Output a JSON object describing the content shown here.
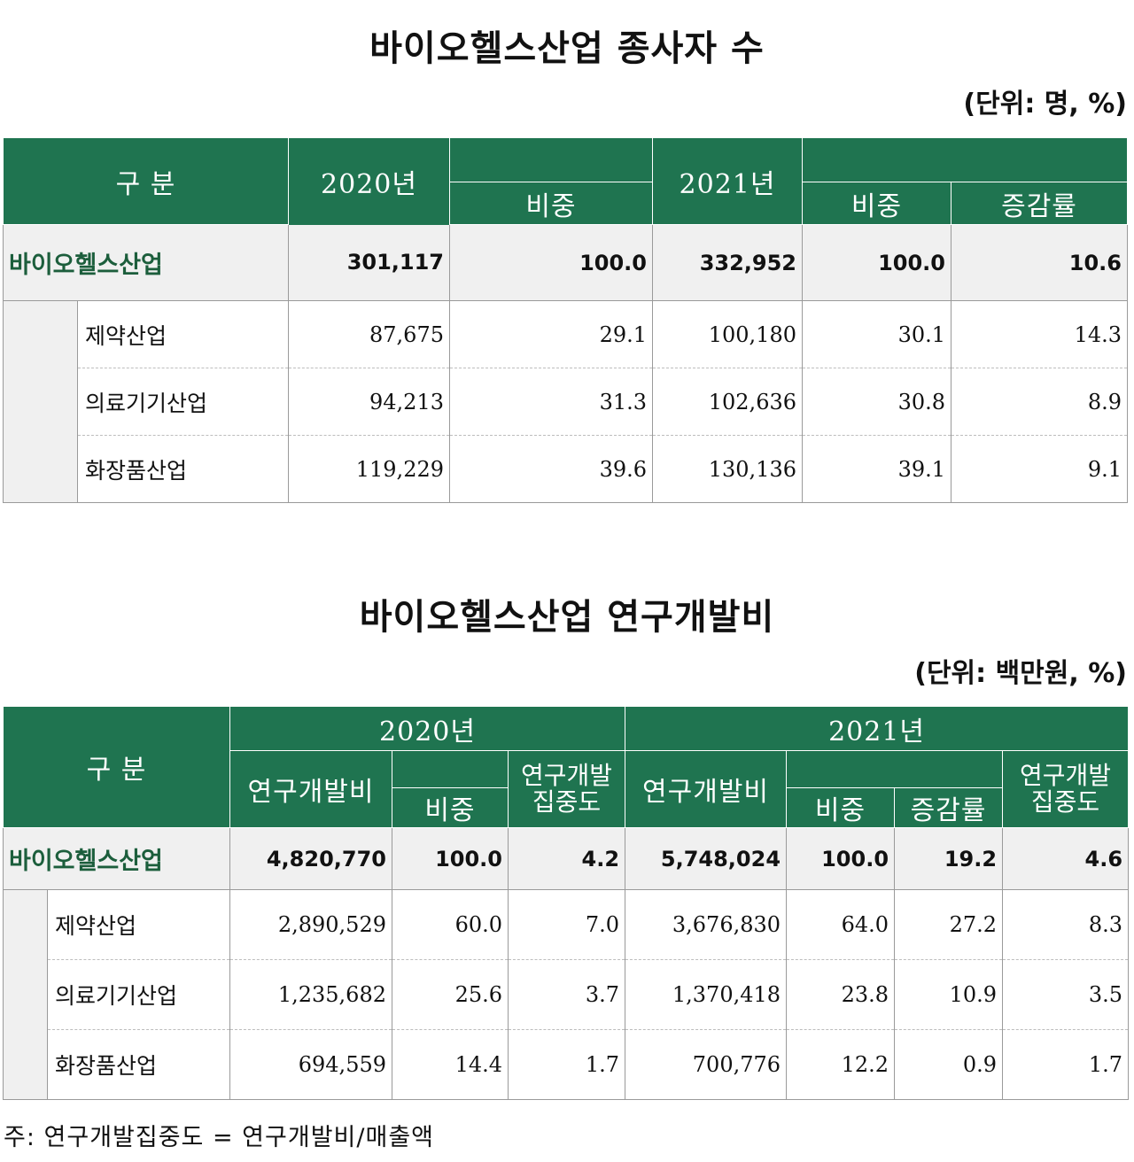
{
  "table1": {
    "title": "바이오헬스산업 종사자 수",
    "unit": "(단위: 명, %)",
    "header": {
      "category": "구 분",
      "y2020": "2020년",
      "y2021": "2021년",
      "share": "비중",
      "growth": "증감률"
    },
    "total": {
      "label": "바이오헬스산업",
      "v2020": "301,117",
      "s2020": "100.0",
      "v2021": "332,952",
      "s2021": "100.0",
      "growth": "10.6"
    },
    "rows": [
      {
        "label": "제약산업",
        "v2020": "87,675",
        "s2020": "29.1",
        "v2021": "100,180",
        "s2021": "30.1",
        "growth": "14.3"
      },
      {
        "label": "의료기기산업",
        "v2020": "94,213",
        "s2020": "31.3",
        "v2021": "102,636",
        "s2021": "30.8",
        "growth": "8.9"
      },
      {
        "label": "화장품산업",
        "v2020": "119,229",
        "s2020": "39.6",
        "v2021": "130,136",
        "s2021": "39.1",
        "growth": "9.1"
      }
    ]
  },
  "table2": {
    "title": "바이오헬스산업 연구개발비",
    "unit": "(단위: 백만원, %)",
    "header": {
      "category": "구 분",
      "y2020": "2020년",
      "y2021": "2021년",
      "rd": "연구개발비",
      "share": "비중",
      "intensity": "연구개발 집중도",
      "growth": "증감률"
    },
    "total": {
      "label": "바이오헬스산업",
      "rd2020": "4,820,770",
      "s2020": "100.0",
      "i2020": "4.2",
      "rd2021": "5,748,024",
      "s2021": "100.0",
      "g2021": "19.2",
      "i2021": "4.6"
    },
    "rows": [
      {
        "label": "제약산업",
        "rd2020": "2,890,529",
        "s2020": "60.0",
        "i2020": "7.0",
        "rd2021": "3,676,830",
        "s2021": "64.0",
        "g2021": "27.2",
        "i2021": "8.3"
      },
      {
        "label": "의료기기산업",
        "rd2020": "1,235,682",
        "s2020": "25.6",
        "i2020": "3.7",
        "rd2021": "1,370,418",
        "s2021": "23.8",
        "g2021": "10.9",
        "i2021": "3.5"
      },
      {
        "label": "화장품산업",
        "rd2020": "694,559",
        "s2020": "14.4",
        "i2020": "1.7",
        "rd2021": "700,776",
        "s2021": "12.2",
        "g2021": "0.9",
        "i2021": "1.7"
      }
    ]
  },
  "note": "주: 연구개발집중도 = 연구개발비/매출액"
}
